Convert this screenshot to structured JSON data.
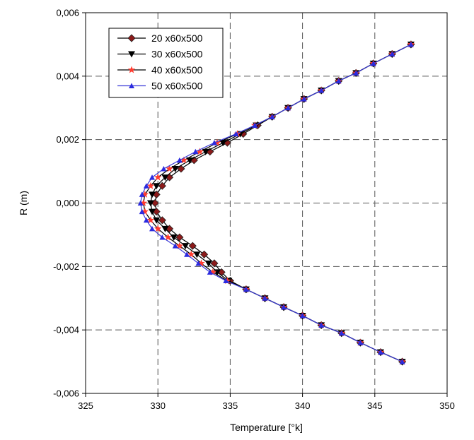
{
  "chart_data": {
    "type": "line",
    "xlabel": "Temperature [°k]",
    "ylabel": "R (m)",
    "xlim": [
      325,
      350
    ],
    "ylim": [
      -0.006,
      0.006
    ],
    "x_ticks": [
      325,
      330,
      335,
      340,
      345,
      350
    ],
    "y_ticks": [
      -0.006,
      -0.004,
      -0.002,
      0,
      0.002,
      0.004,
      0.006
    ],
    "x_tick_labels": [
      "325",
      "330",
      "335",
      "340",
      "345",
      "350"
    ],
    "y_tick_labels": [
      "-0,006",
      "-0,004",
      "-0,002",
      "0,000",
      "0,002",
      "0,004",
      "0,006"
    ],
    "grid": true,
    "legend_position": "top-left",
    "series": [
      {
        "name": "20 x60x500",
        "marker": "diamond",
        "marker_color": "#8b1a1a",
        "line_color": "#000000",
        "points": [
          [
            347.5,
            0.005
          ],
          [
            346.2,
            0.0047
          ],
          [
            344.9,
            0.0044
          ],
          [
            343.7,
            0.0041
          ],
          [
            342.5,
            0.00385
          ],
          [
            341.3,
            0.00355
          ],
          [
            340.1,
            0.00328
          ],
          [
            339.0,
            0.003
          ],
          [
            337.9,
            0.00272
          ],
          [
            336.9,
            0.00245
          ],
          [
            335.9,
            0.00218
          ],
          [
            334.8,
            0.0019
          ],
          [
            333.6,
            0.00162
          ],
          [
            332.5,
            0.00135
          ],
          [
            331.6,
            0.00108
          ],
          [
            330.8,
            0.00081
          ],
          [
            330.3,
            0.00054
          ],
          [
            329.9,
            0.00027
          ],
          [
            329.8,
            0.0
          ],
          [
            329.9,
            -0.00027
          ],
          [
            330.3,
            -0.00054
          ],
          [
            330.8,
            -0.00081
          ],
          [
            331.5,
            -0.00108
          ],
          [
            332.4,
            -0.00135
          ],
          [
            333.2,
            -0.00162
          ],
          [
            333.9,
            -0.0019
          ],
          [
            334.4,
            -0.00218
          ],
          [
            335.0,
            -0.00245
          ],
          [
            336.1,
            -0.00272
          ],
          [
            337.4,
            -0.003
          ],
          [
            338.7,
            -0.00328
          ],
          [
            340.0,
            -0.00355
          ],
          [
            341.3,
            -0.00385
          ],
          [
            342.7,
            -0.0041
          ],
          [
            344.0,
            -0.0044
          ],
          [
            345.4,
            -0.0047
          ],
          [
            346.9,
            -0.005
          ]
        ]
      },
      {
        "name": "30 x60x500",
        "marker": "triangle-down",
        "marker_color": "#000000",
        "line_color": "#000000",
        "points": [
          [
            347.5,
            0.005
          ],
          [
            346.2,
            0.0047
          ],
          [
            344.9,
            0.0044
          ],
          [
            343.7,
            0.0041
          ],
          [
            342.5,
            0.00385
          ],
          [
            341.3,
            0.00355
          ],
          [
            340.1,
            0.00328
          ],
          [
            339.0,
            0.003
          ],
          [
            337.9,
            0.00272
          ],
          [
            336.8,
            0.00245
          ],
          [
            335.7,
            0.00218
          ],
          [
            334.5,
            0.0019
          ],
          [
            333.3,
            0.00162
          ],
          [
            332.2,
            0.00135
          ],
          [
            331.2,
            0.00108
          ],
          [
            330.5,
            0.00081
          ],
          [
            329.9,
            0.00054
          ],
          [
            329.6,
            0.00027
          ],
          [
            329.5,
            0.0
          ],
          [
            329.6,
            -0.00027
          ],
          [
            329.9,
            -0.00054
          ],
          [
            330.5,
            -0.00081
          ],
          [
            331.1,
            -0.00108
          ],
          [
            331.9,
            -0.00135
          ],
          [
            332.7,
            -0.00162
          ],
          [
            333.5,
            -0.0019
          ],
          [
            334.1,
            -0.00218
          ],
          [
            334.9,
            -0.00245
          ],
          [
            336.1,
            -0.00272
          ],
          [
            337.4,
            -0.003
          ],
          [
            338.7,
            -0.00328
          ],
          [
            340.0,
            -0.00355
          ],
          [
            341.3,
            -0.00385
          ],
          [
            342.7,
            -0.0041
          ],
          [
            344.0,
            -0.0044
          ],
          [
            345.4,
            -0.0047
          ],
          [
            346.9,
            -0.005
          ]
        ]
      },
      {
        "name": "40 x60x500",
        "marker": "star",
        "marker_color": "#ff3b2f",
        "line_color": "#000000",
        "points": [
          [
            347.5,
            0.005
          ],
          [
            346.2,
            0.0047
          ],
          [
            344.9,
            0.0044
          ],
          [
            343.7,
            0.0041
          ],
          [
            342.5,
            0.00385
          ],
          [
            341.3,
            0.00355
          ],
          [
            340.1,
            0.00328
          ],
          [
            339.0,
            0.003
          ],
          [
            337.9,
            0.00272
          ],
          [
            336.7,
            0.00245
          ],
          [
            335.5,
            0.00218
          ],
          [
            334.1,
            0.0019
          ],
          [
            332.9,
            0.00162
          ],
          [
            331.8,
            0.00135
          ],
          [
            330.8,
            0.00108
          ],
          [
            330.0,
            0.00081
          ],
          [
            329.5,
            0.00054
          ],
          [
            329.1,
            0.00027
          ],
          [
            329.0,
            0.0
          ],
          [
            329.1,
            -0.00027
          ],
          [
            329.5,
            -0.00054
          ],
          [
            330.0,
            -0.00081
          ],
          [
            330.7,
            -0.00108
          ],
          [
            331.5,
            -0.00135
          ],
          [
            332.3,
            -0.00162
          ],
          [
            333.0,
            -0.0019
          ],
          [
            333.8,
            -0.00218
          ],
          [
            334.8,
            -0.00245
          ],
          [
            336.1,
            -0.00272
          ],
          [
            337.4,
            -0.003
          ],
          [
            338.7,
            -0.00328
          ],
          [
            340.0,
            -0.00355
          ],
          [
            341.3,
            -0.00385
          ],
          [
            342.7,
            -0.0041
          ],
          [
            344.0,
            -0.0044
          ],
          [
            345.4,
            -0.0047
          ],
          [
            346.9,
            -0.005
          ]
        ]
      },
      {
        "name": "50 x60x500",
        "marker": "triangle-up",
        "marker_color": "#2b2bdf",
        "line_color": "#3a3ad8",
        "points": [
          [
            347.5,
            0.005
          ],
          [
            346.2,
            0.0047
          ],
          [
            344.9,
            0.0044
          ],
          [
            343.7,
            0.0041
          ],
          [
            342.5,
            0.00385
          ],
          [
            341.3,
            0.00355
          ],
          [
            340.1,
            0.00328
          ],
          [
            339.0,
            0.003
          ],
          [
            337.9,
            0.00272
          ],
          [
            336.7,
            0.00245
          ],
          [
            335.4,
            0.00218
          ],
          [
            333.9,
            0.0019
          ],
          [
            332.6,
            0.00162
          ],
          [
            331.5,
            0.00135
          ],
          [
            330.4,
            0.00108
          ],
          [
            329.6,
            0.00081
          ],
          [
            329.2,
            0.00054
          ],
          [
            328.9,
            0.00027
          ],
          [
            328.8,
            0.0
          ],
          [
            328.9,
            -0.00027
          ],
          [
            329.2,
            -0.00054
          ],
          [
            329.6,
            -0.00081
          ],
          [
            330.3,
            -0.00108
          ],
          [
            331.2,
            -0.00135
          ],
          [
            332.0,
            -0.00162
          ],
          [
            332.8,
            -0.0019
          ],
          [
            333.6,
            -0.00218
          ],
          [
            334.7,
            -0.00245
          ],
          [
            336.1,
            -0.00272
          ],
          [
            337.4,
            -0.003
          ],
          [
            338.7,
            -0.00328
          ],
          [
            340.0,
            -0.00355
          ],
          [
            341.3,
            -0.00385
          ],
          [
            342.7,
            -0.0041
          ],
          [
            344.0,
            -0.0044
          ],
          [
            345.4,
            -0.0047
          ],
          [
            346.9,
            -0.005
          ]
        ]
      }
    ]
  }
}
